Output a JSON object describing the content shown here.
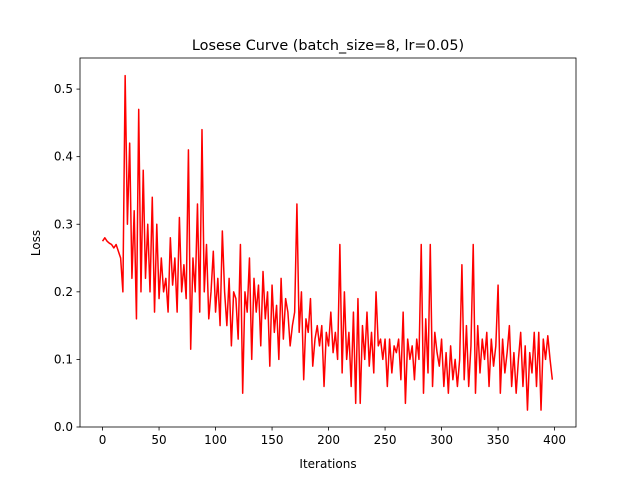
{
  "chart_data": {
    "type": "line",
    "title": "Losese Curve (batch_size=8, lr=0.05)",
    "x_label": "Iterations",
    "y_label": "Loss",
    "color": "#ff0000",
    "x": [
      0,
      2,
      4,
      6,
      8,
      10,
      12,
      14,
      16,
      18,
      20,
      22,
      24,
      26,
      28,
      30,
      32,
      34,
      36,
      38,
      40,
      42,
      44,
      46,
      48,
      50,
      52,
      54,
      56,
      58,
      60,
      62,
      64,
      66,
      68,
      70,
      72,
      74,
      76,
      78,
      80,
      82,
      84,
      86,
      88,
      90,
      92,
      94,
      96,
      98,
      100,
      102,
      104,
      106,
      108,
      110,
      112,
      114,
      116,
      118,
      120,
      122,
      124,
      126,
      128,
      130,
      132,
      134,
      136,
      138,
      140,
      142,
      144,
      146,
      148,
      150,
      152,
      154,
      156,
      158,
      160,
      162,
      164,
      166,
      168,
      170,
      172,
      174,
      176,
      178,
      180,
      182,
      184,
      186,
      188,
      190,
      192,
      194,
      196,
      198,
      200,
      202,
      204,
      206,
      208,
      210,
      212,
      214,
      216,
      218,
      220,
      222,
      224,
      226,
      228,
      230,
      232,
      234,
      236,
      238,
      240,
      242,
      244,
      246,
      248,
      250,
      252,
      254,
      256,
      258,
      260,
      262,
      264,
      266,
      268,
      270,
      272,
      274,
      276,
      278,
      280,
      282,
      284,
      286,
      288,
      290,
      292,
      294,
      296,
      298,
      300,
      302,
      304,
      306,
      308,
      310,
      312,
      314,
      316,
      318,
      320,
      322,
      324,
      326,
      328,
      330,
      332,
      334,
      336,
      338,
      340,
      342,
      344,
      346,
      348,
      350,
      352,
      354,
      356,
      358,
      360,
      362,
      364,
      366,
      368,
      370,
      372,
      374,
      376,
      378,
      380,
      382,
      384,
      386,
      388,
      390,
      392,
      394,
      396,
      398
    ],
    "values": [
      0.275,
      0.28,
      0.275,
      0.272,
      0.27,
      0.265,
      0.27,
      0.26,
      0.25,
      0.2,
      0.52,
      0.3,
      0.42,
      0.22,
      0.32,
      0.16,
      0.47,
      0.2,
      0.38,
      0.22,
      0.3,
      0.2,
      0.34,
      0.17,
      0.3,
      0.19,
      0.25,
      0.2,
      0.22,
      0.17,
      0.28,
      0.21,
      0.25,
      0.17,
      0.31,
      0.2,
      0.24,
      0.19,
      0.41,
      0.115,
      0.25,
      0.2,
      0.33,
      0.17,
      0.44,
      0.2,
      0.27,
      0.16,
      0.2,
      0.26,
      0.17,
      0.22,
      0.15,
      0.29,
      0.2,
      0.15,
      0.22,
      0.12,
      0.2,
      0.19,
      0.13,
      0.27,
      0.05,
      0.2,
      0.17,
      0.25,
      0.1,
      0.22,
      0.17,
      0.21,
      0.12,
      0.23,
      0.16,
      0.2,
      0.09,
      0.21,
      0.14,
      0.18,
      0.1,
      0.22,
      0.13,
      0.19,
      0.17,
      0.12,
      0.15,
      0.17,
      0.33,
      0.14,
      0.2,
      0.07,
      0.16,
      0.14,
      0.19,
      0.09,
      0.13,
      0.15,
      0.12,
      0.15,
      0.06,
      0.14,
      0.12,
      0.17,
      0.11,
      0.14,
      0.1,
      0.27,
      0.08,
      0.2,
      0.1,
      0.14,
      0.06,
      0.17,
      0.035,
      0.19,
      0.035,
      0.15,
      0.1,
      0.17,
      0.09,
      0.14,
      0.08,
      0.2,
      0.12,
      0.13,
      0.1,
      0.13,
      0.06,
      0.13,
      0.08,
      0.12,
      0.11,
      0.13,
      0.07,
      0.17,
      0.035,
      0.13,
      0.1,
      0.12,
      0.07,
      0.13,
      0.1,
      0.27,
      0.05,
      0.16,
      0.08,
      0.27,
      0.06,
      0.14,
      0.11,
      0.09,
      0.13,
      0.06,
      0.11,
      0.05,
      0.12,
      0.07,
      0.1,
      0.06,
      0.1,
      0.24,
      0.07,
      0.15,
      0.06,
      0.12,
      0.27,
      0.05,
      0.15,
      0.08,
      0.13,
      0.1,
      0.14,
      0.06,
      0.13,
      0.09,
      0.12,
      0.21,
      0.05,
      0.13,
      0.08,
      0.11,
      0.15,
      0.06,
      0.11,
      0.05,
      0.1,
      0.14,
      0.06,
      0.12,
      0.025,
      0.11,
      0.08,
      0.14,
      0.06,
      0.14,
      0.025,
      0.13,
      0.1,
      0.135,
      0.1,
      0.07
    ],
    "xlim": [
      -19.95,
      418.95
    ],
    "xticks": [
      0,
      50,
      100,
      150,
      200,
      250,
      300,
      350,
      400
    ],
    "ylim": [
      0,
      0.546
    ],
    "yticks": [
      {
        "value": 0,
        "label": "0.0"
      },
      0.1,
      0.2,
      0.3,
      0.4,
      0.5
    ]
  }
}
